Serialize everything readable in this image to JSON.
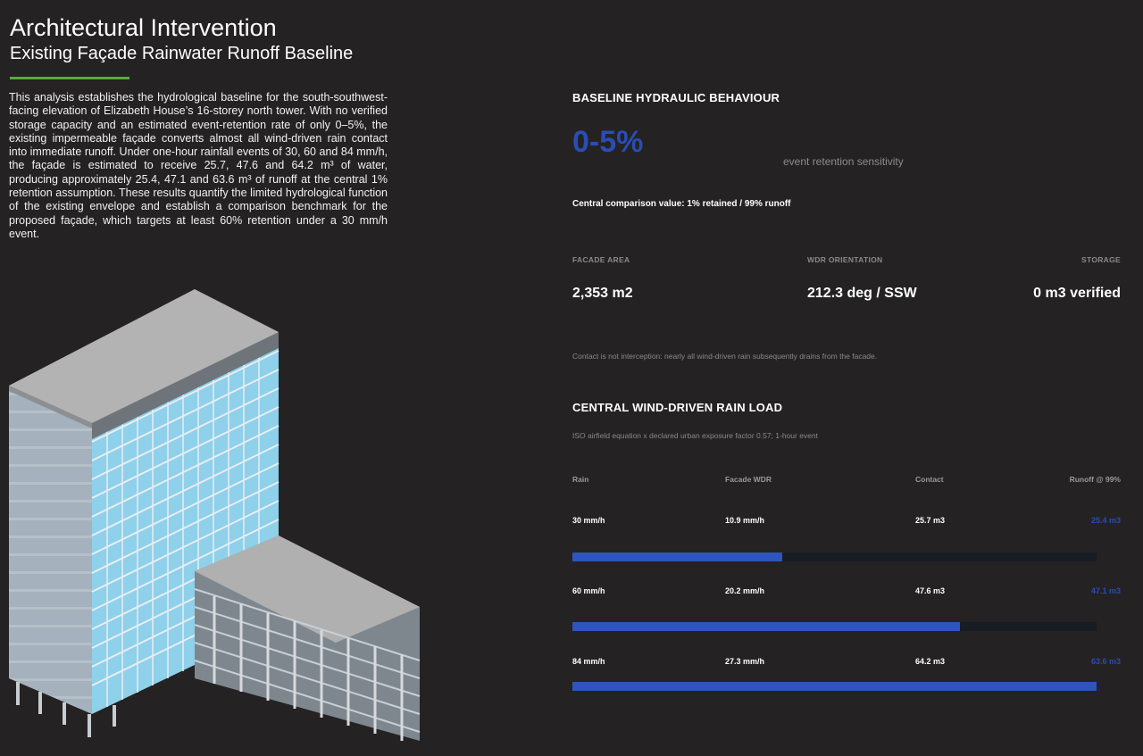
{
  "header": {
    "title": "Architectural Intervention",
    "subtitle": "Existing Façade Rainwater Runoff Baseline"
  },
  "intro": "This analysis establishes the hydrological baseline for the south-southwest-facing elevation of Elizabeth House’s 16-storey north tower. With no verified storage capacity and an estimated event-retention rate of only 0–5%, the existing impermeable façade converts almost all wind-driven rain contact into immediate runoff. Under one-hour rainfall events of 30, 60 and 84 mm/h, the façade is estimated to receive 25.7, 47.6 and 64.2 m³ of water, producing approximately 25.4, 47.1 and 63.6 m³ of runoff at the central 1% retention assumption. These results quantify the limited hydrological function of the existing envelope and establish a comparison benchmark for the proposed façade, which targets at least 60% retention under a 30 mm/h event.",
  "hydraulic": {
    "heading": "BASELINE HYDRAULIC BEHAVIOUR",
    "range": "0-5%",
    "range_caption": "event retention sensitivity",
    "central": "Central comparison value: 1% retained / 99% runoff"
  },
  "stats": [
    {
      "label": "FACADE AREA",
      "value": "2,353 m2"
    },
    {
      "label": "WDR ORIENTATION",
      "value": "212.3 deg / SSW"
    },
    {
      "label": "STORAGE",
      "value": "0 m3 verified"
    }
  ],
  "note": "Contact is not interception: nearly all wind-driven rain subsequently drains from the facade.",
  "load": {
    "heading": "CENTRAL WIND-DRIVEN RAIN LOAD",
    "subheading": "ISO airfield equation x declared urban exposure factor 0.57; 1-hour event",
    "columns": [
      "Rain",
      "Facade WDR",
      "Contact",
      "Runoff @ 99%"
    ],
    "rows": [
      {
        "rain": "30 mm/h",
        "wdr": "10.9 mm/h",
        "contact": "25.7 m3",
        "runoff": "25.4 m3",
        "fraction": 0.4
      },
      {
        "rain": "60 mm/h",
        "wdr": "20.2 mm/h",
        "contact": "47.6 m3",
        "runoff": "47.1 m3",
        "fraction": 0.74
      },
      {
        "rain": "84 mm/h",
        "wdr": "27.3 mm/h",
        "contact": "64.2 m3",
        "runoff": "63.6 m3",
        "fraction": 1.0
      }
    ]
  },
  "colors": {
    "accent_green": "#5aa840",
    "accent_blue": "#2a4db3",
    "bar_fill": "#2e55bd",
    "background": "#242222"
  }
}
